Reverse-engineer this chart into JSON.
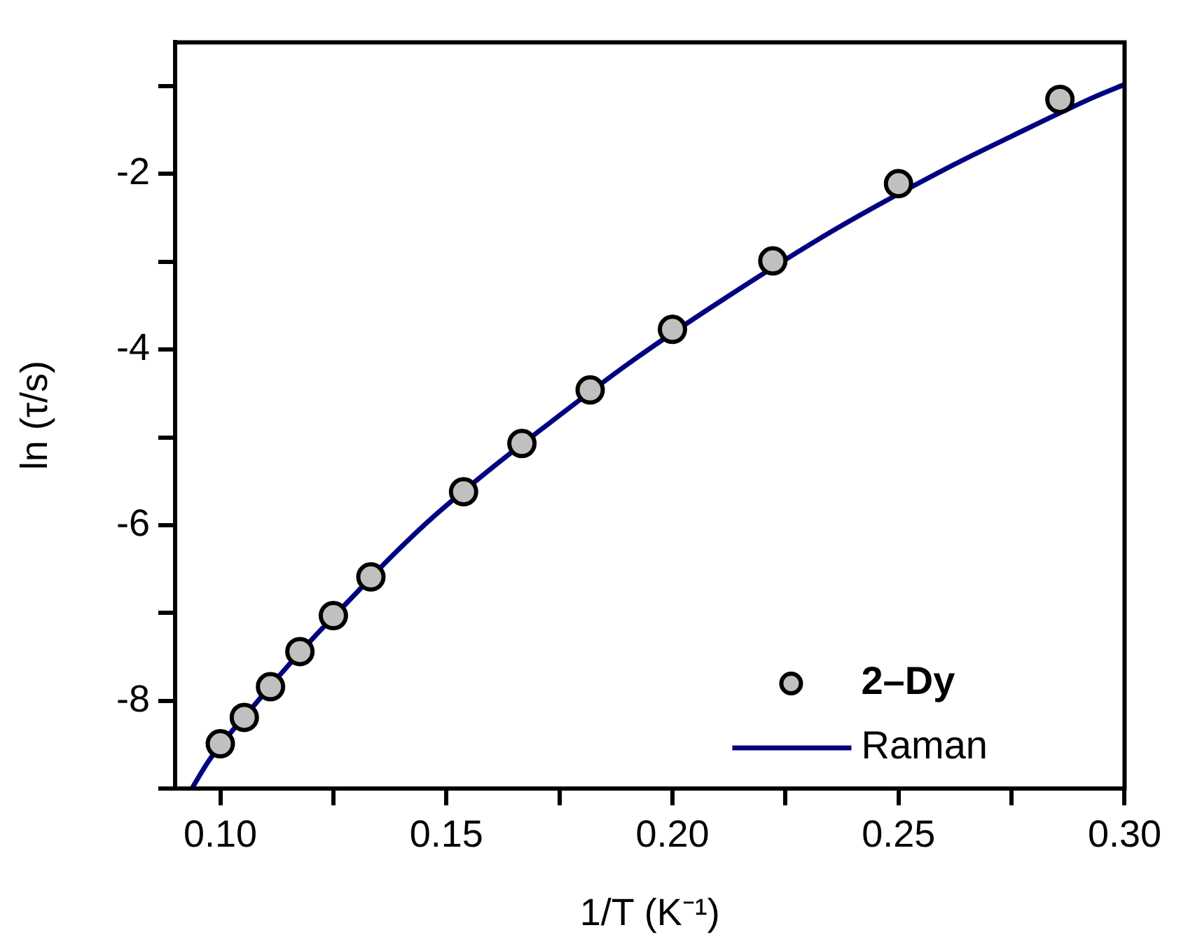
{
  "chart_data": {
    "type": "scatter",
    "xlabel": "1/T (K⁻¹)",
    "ylabel": "ln (τ/s)",
    "xlim": [
      0.09,
      0.3
    ],
    "xticks": [
      {
        "value": 0.1,
        "label": "0.10"
      },
      {
        "value": 0.125,
        "label": null
      },
      0.15,
      {
        "value": 0.175,
        "label": null
      },
      {
        "value": 0.2,
        "label": "0.20"
      },
      {
        "value": 0.225,
        "label": null
      },
      0.25,
      {
        "value": 0.275,
        "label": null
      },
      {
        "value": 0.3,
        "label": "0.30"
      }
    ],
    "ylim": [
      -9,
      -0.5
    ],
    "yticks": [
      {
        "value": -9,
        "label": null
      },
      -8,
      {
        "value": -7,
        "label": null
      },
      -6,
      {
        "value": -5,
        "label": null
      },
      -4,
      {
        "value": -3,
        "label": null
      },
      -2,
      {
        "value": -1,
        "label": null
      }
    ],
    "grid": false,
    "legend": "bottom right",
    "marker": "circle",
    "series": [
      {
        "name": "2–Dy",
        "color": "#c0c0c0",
        "x": [
          0.1,
          0.1053,
          0.1111,
          0.1176,
          0.125,
          0.1333,
          0.1538,
          0.1667,
          0.1818,
          0.2,
          0.2222,
          0.25,
          0.2857
        ],
        "values": [
          -8.49,
          -8.19,
          -7.84,
          -7.44,
          -7.03,
          -6.59,
          -5.62,
          -5.07,
          -4.46,
          -3.77,
          -2.99,
          -2.11,
          -1.15
        ]
      },
      {
        "name": "Raman",
        "type": "line",
        "color": "#000080",
        "marker": "none",
        "line_style": "solid",
        "x": [
          0.0937,
          0.0975,
          0.108,
          0.115,
          0.121,
          0.129,
          0.138,
          0.147,
          0.16,
          0.174,
          0.19,
          0.21,
          0.236,
          0.262,
          0.275,
          0.293,
          0.3
        ],
        "values": [
          -9,
          -8.68,
          -8.02,
          -7.6,
          -7.26,
          -6.83,
          -6.35,
          -5.91,
          -5.35,
          -4.79,
          -4.17,
          -3.47,
          -2.63,
          -1.9,
          -1.57,
          -1.13,
          -0.98
        ]
      }
    ]
  }
}
